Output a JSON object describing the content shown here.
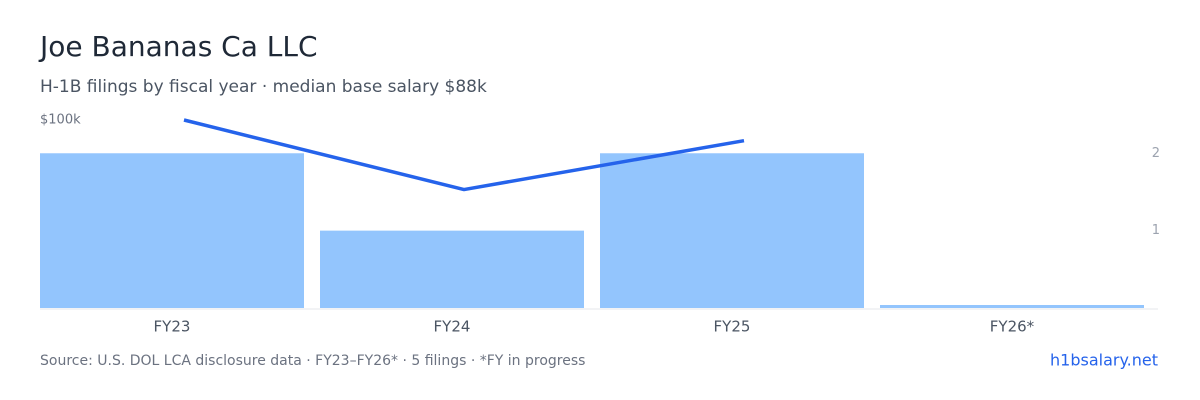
{
  "chart_data": {
    "type": "combo",
    "title": "Joe Bananas Ca LLC",
    "subtitle": "H-1B filings by fiscal year · median base salary $88k",
    "categories": [
      "FY23",
      "FY24",
      "FY25",
      "FY26*"
    ],
    "series": [
      {
        "type": "bar",
        "axis": "y2",
        "color": "#93c5fd",
        "values": [
          2,
          1,
          2,
          0
        ]
      },
      {
        "type": "line",
        "color": "#2563eb",
        "values": [
          100000,
          63000,
          89000,
          null
        ]
      }
    ],
    "ylim": [
      0,
      100000
    ],
    "yticks": [
      {
        "value": 100000,
        "label": "$100k"
      }
    ],
    "y2lim": [
      0,
      2.43
    ],
    "y2ticks": [
      1,
      2
    ],
    "source": "Source: U.S. DOL LCA disclosure data · FY23–FY26* · 5 filings · *FY in progress",
    "link": "h1bsalary.net"
  }
}
